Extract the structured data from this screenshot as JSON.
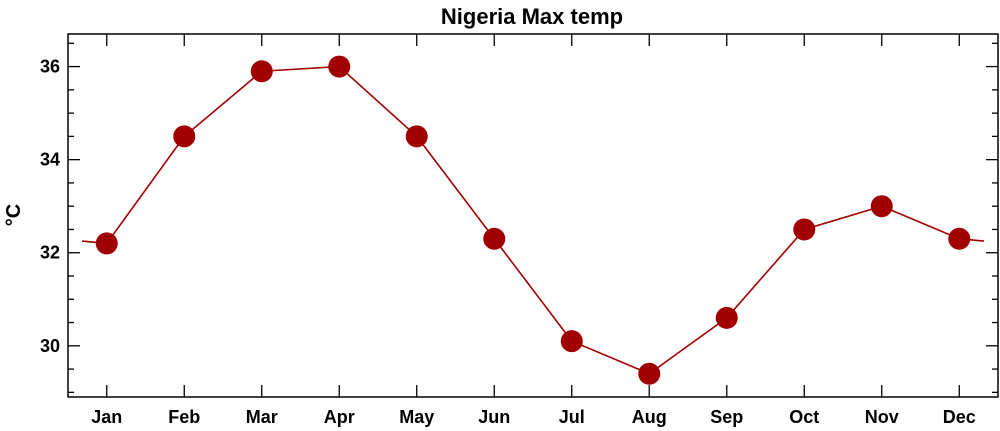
{
  "chart_data": {
    "type": "line",
    "title": "Nigeria Max temp",
    "xlabel": "",
    "ylabel": "°C",
    "categories": [
      "Jan",
      "Feb",
      "Mar",
      "Apr",
      "May",
      "Jun",
      "Jul",
      "Aug",
      "Sep",
      "Oct",
      "Nov",
      "Dec"
    ],
    "series": [
      {
        "values": [
          32.2,
          34.5,
          35.9,
          36.0,
          34.5,
          32.3,
          30.1,
          29.4,
          30.6,
          32.5,
          33.0,
          32.3
        ]
      }
    ],
    "ylim": [
      28.9,
      36.7
    ],
    "yticks": [
      30,
      32,
      34,
      36
    ],
    "y_minor_step": 0.5,
    "wrap_edges": true,
    "grid": false,
    "colors": {
      "line": "#a00000",
      "marker": "#a00000",
      "axis": "#000000"
    }
  }
}
